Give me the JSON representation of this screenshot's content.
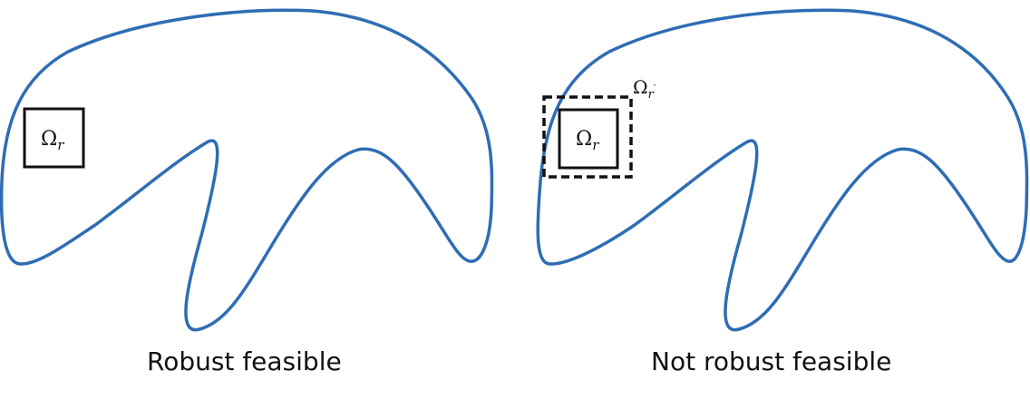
{
  "panels": {
    "left": {
      "caption": "Robust feasible",
      "inner_label": {
        "base": "Ω",
        "sub": "r"
      }
    },
    "right": {
      "caption": "Not robust feasible",
      "inner_label": {
        "base": "Ω",
        "sub": "r"
      },
      "outer_label": {
        "base": "Ω",
        "sub": "r",
        "prime": "′"
      }
    }
  },
  "colors": {
    "region_stroke": "#2e6db4",
    "box_stroke": "#111111"
  }
}
